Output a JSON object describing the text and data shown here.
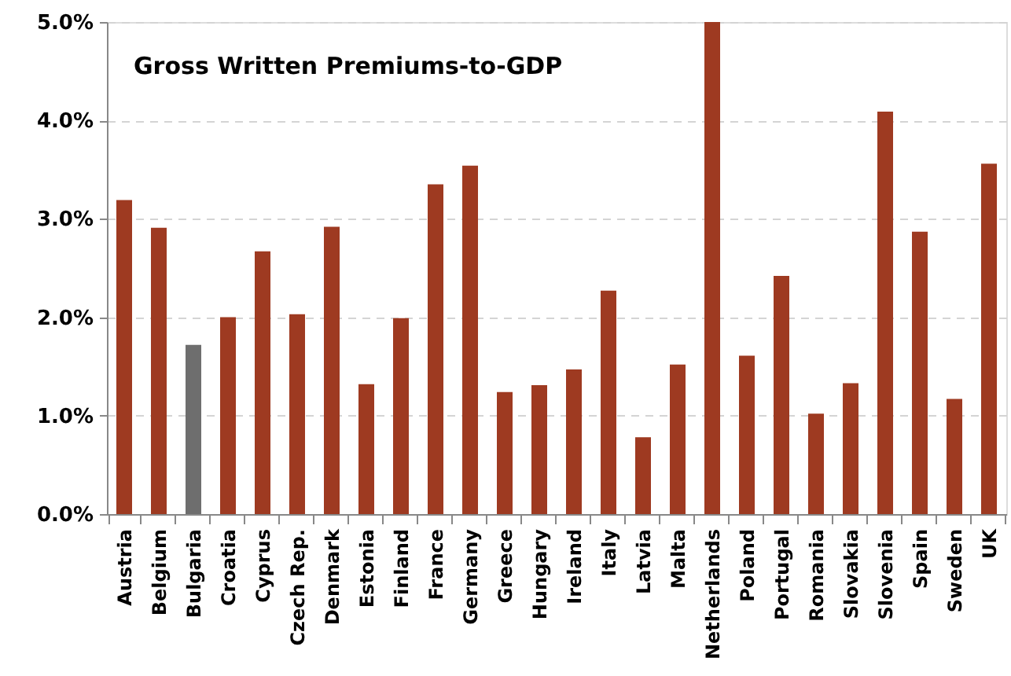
{
  "chart_data": {
    "type": "bar",
    "title": "Gross Written Premiums-to-GDP",
    "categories": [
      "Austria",
      "Belgium",
      "Bulgaria",
      "Croatia",
      "Cyprus",
      "Czech Rep.",
      "Denmark",
      "Estonia",
      "Finland",
      "France",
      "Germany",
      "Greece",
      "Hungary",
      "Ireland",
      "Italy",
      "Latvia",
      "Malta",
      "Netherlands",
      "Poland",
      "Portugal",
      "Romania",
      "Slovakia",
      "Slovenia",
      "Spain",
      "Sweden",
      "UK"
    ],
    "values": [
      3.19,
      2.91,
      1.72,
      2.0,
      2.67,
      2.03,
      2.92,
      1.32,
      1.99,
      3.35,
      3.54,
      1.24,
      1.31,
      1.47,
      2.27,
      0.78,
      1.52,
      5.0,
      1.61,
      2.42,
      1.02,
      1.33,
      4.09,
      2.87,
      1.17,
      3.56
    ],
    "colors": [
      "#9e3a21",
      "#9e3a21",
      "#6e6e6e",
      "#9e3a21",
      "#9e3a21",
      "#9e3a21",
      "#9e3a21",
      "#9e3a21",
      "#9e3a21",
      "#9e3a21",
      "#9e3a21",
      "#9e3a21",
      "#9e3a21",
      "#9e3a21",
      "#9e3a21",
      "#9e3a21",
      "#9e3a21",
      "#9e3a21",
      "#9e3a21",
      "#9e3a21",
      "#9e3a21",
      "#9e3a21",
      "#9e3a21",
      "#9e3a21",
      "#9e3a21",
      "#9e3a21"
    ],
    "ylim": [
      0,
      5
    ],
    "yticks": [
      {
        "value": 0,
        "label": "0.0%"
      },
      {
        "value": 1,
        "label": "1.0%"
      },
      {
        "value": 2,
        "label": "2.0%"
      },
      {
        "value": 3,
        "label": "3.0%"
      },
      {
        "value": 4,
        "label": "4.0%"
      },
      {
        "value": 5,
        "label": "5.0%"
      }
    ],
    "grid": "y"
  }
}
